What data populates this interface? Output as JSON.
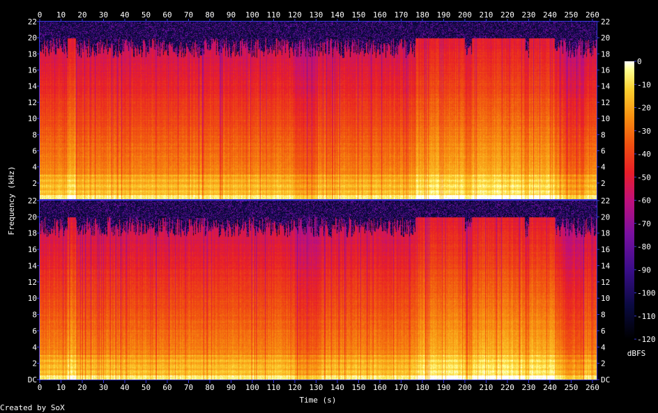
{
  "footer": {
    "credit": "Created by SoX"
  },
  "chart_data": {
    "type": "heatmap",
    "title": "",
    "xlabel": "Time (s)",
    "ylabel": "Frequency (kHz)",
    "colorbar_label": "dBFS",
    "xlim": [
      0,
      262
    ],
    "x_ticks": [
      0,
      10,
      20,
      30,
      40,
      50,
      60,
      70,
      80,
      90,
      100,
      110,
      120,
      130,
      140,
      150,
      160,
      170,
      180,
      190,
      200,
      210,
      220,
      230,
      240,
      250,
      260
    ],
    "ylim_khz": [
      0,
      22
    ],
    "y_ticks": [
      0,
      2,
      4,
      6,
      8,
      10,
      12,
      14,
      16,
      18,
      20,
      22
    ],
    "y_tick_labels": [
      "DC",
      "2",
      "4",
      "6",
      "8",
      "10",
      "12",
      "14",
      "16",
      "18",
      "20",
      "22"
    ],
    "colorbar_ticks": [
      0,
      -10,
      -20,
      -30,
      -40,
      -50,
      -60,
      -70,
      -80,
      -90,
      -100,
      -110,
      -120
    ],
    "colorbar_range_dbfs": [
      -120,
      0
    ],
    "grid": false,
    "channels": [
      {
        "name": "",
        "cutoff_khz": 20,
        "bright_regions": [
          {
            "t_start": 13,
            "t_end": 17,
            "up_to_khz": 20
          },
          {
            "t_start": 177,
            "t_end": 200,
            "up_to_khz": 20
          },
          {
            "t_start": 203,
            "t_end": 228,
            "up_to_khz": 20
          },
          {
            "t_start": 230,
            "t_end": 242,
            "up_to_khz": 20
          }
        ],
        "dim_regions": [
          {
            "t_start": 120,
            "t_end": 130
          },
          {
            "t_start": 246,
            "t_end": 256
          }
        ]
      },
      {
        "name": "",
        "cutoff_khz": 20,
        "bright_regions": [
          {
            "t_start": 13,
            "t_end": 17,
            "up_to_khz": 20
          },
          {
            "t_start": 177,
            "t_end": 200,
            "up_to_khz": 20
          },
          {
            "t_start": 203,
            "t_end": 228,
            "up_to_khz": 20
          },
          {
            "t_start": 230,
            "t_end": 242,
            "up_to_khz": 20
          }
        ],
        "dim_regions": [
          {
            "t_start": 120,
            "t_end": 132
          },
          {
            "t_start": 246,
            "t_end": 256
          }
        ]
      }
    ],
    "colors": {
      "background": "#000000",
      "axis": "#4848ff",
      "text": "#ffffff"
    }
  }
}
